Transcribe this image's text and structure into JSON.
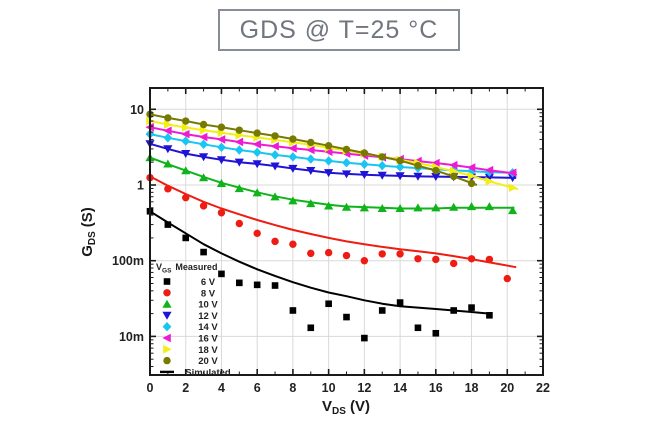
{
  "title": "GDS @ T=25 °C",
  "chart_data": {
    "type": "line",
    "title": "GDS @ T=25 °C",
    "xlabel": {
      "main": "V",
      "sub": "DS",
      "unit": "(V)"
    },
    "ylabel": {
      "main": "G",
      "sub": "DS",
      "unit": "(S)"
    },
    "x_axis": {
      "min": 0,
      "max": 22,
      "major_step": 2,
      "minor_step": 1,
      "tick_labels": [
        "0",
        "2",
        "4",
        "6",
        "8",
        "10",
        "12",
        "14",
        "16",
        "18",
        "20",
        "22"
      ]
    },
    "y_axis": {
      "scale": "log",
      "min": 0.003,
      "max": 19,
      "ticks": [
        {
          "label": "10",
          "value": 10
        },
        {
          "label": "1",
          "value": 1
        },
        {
          "label": "100m",
          "value": 0.1
        },
        {
          "label": "10m",
          "value": 0.01
        }
      ]
    },
    "grid": {
      "on": true,
      "color": "#d9d9d9"
    },
    "legend": {
      "position": "lower-left",
      "header": {
        "main": "V",
        "sub": "GS",
        "tail": "Measured"
      },
      "simulated_label": "Simulated"
    },
    "series": [
      {
        "name": "6 V",
        "vgs": 6,
        "color": "#000000",
        "marker": "square",
        "x": [
          0,
          1,
          2,
          3,
          4,
          5,
          6,
          7,
          8,
          9,
          10,
          11,
          12,
          13,
          14,
          15,
          16,
          17,
          18,
          19
        ],
        "measured": [
          0.45,
          0.3,
          0.2,
          0.13,
          0.067,
          0.051,
          0.048,
          0.047,
          0.022,
          0.013,
          0.027,
          0.018,
          0.0095,
          0.022,
          0.028,
          0.013,
          0.011,
          0.022,
          0.024,
          0.019
        ],
        "sim_x": [
          0,
          1,
          2,
          3,
          4,
          5,
          6,
          7,
          8,
          9,
          10,
          11,
          12,
          13,
          14,
          15,
          16,
          17,
          18,
          19
        ],
        "sim": [
          0.45,
          0.32,
          0.23,
          0.165,
          0.125,
          0.097,
          0.077,
          0.063,
          0.052,
          0.044,
          0.038,
          0.034,
          0.03,
          0.027,
          0.025,
          0.024,
          0.023,
          0.022,
          0.021,
          0.02
        ]
      },
      {
        "name": "8 V",
        "vgs": 8,
        "color": "#ee1c12",
        "marker": "circle",
        "x": [
          0,
          1,
          2,
          3,
          4,
          5,
          6,
          7,
          8,
          9,
          10,
          11,
          12,
          13,
          14,
          15,
          16,
          17,
          18,
          19,
          20
        ],
        "measured": [
          1.25,
          0.89,
          0.68,
          0.53,
          0.43,
          0.31,
          0.23,
          0.18,
          0.165,
          0.125,
          0.128,
          0.117,
          0.1,
          0.123,
          0.123,
          0.106,
          0.104,
          0.092,
          0.106,
          0.104,
          0.058
        ],
        "sim_x": [
          0,
          1,
          2,
          3,
          4,
          5,
          6,
          7,
          8,
          9,
          10,
          11,
          12,
          13,
          14,
          15,
          16,
          17,
          18,
          19,
          20.5
        ],
        "sim": [
          1.3,
          0.98,
          0.76,
          0.6,
          0.49,
          0.41,
          0.345,
          0.295,
          0.255,
          0.225,
          0.2,
          0.18,
          0.165,
          0.152,
          0.142,
          0.133,
          0.125,
          0.115,
          0.105,
          0.095,
          0.082
        ]
      },
      {
        "name": "10 V",
        "vgs": 10,
        "color": "#0eb419",
        "marker": "triangle-up",
        "x": [
          0,
          1,
          2,
          3,
          4,
          5,
          6,
          7,
          8,
          9,
          10,
          11,
          12,
          13,
          14,
          15,
          16,
          17,
          18,
          19,
          20.3
        ],
        "measured": [
          2.3,
          1.9,
          1.55,
          1.25,
          1.05,
          0.9,
          0.79,
          0.7,
          0.62,
          0.57,
          0.53,
          0.51,
          0.5,
          0.49,
          0.49,
          0.5,
          0.5,
          0.51,
          0.52,
          0.52,
          0.46
        ],
        "sim_x": [
          0,
          1,
          2,
          3,
          4,
          5,
          6,
          7,
          8,
          9,
          10,
          11,
          12,
          13,
          14,
          15,
          16,
          17,
          18,
          19,
          20.4
        ],
        "sim": [
          2.3,
          1.88,
          1.55,
          1.28,
          1.07,
          0.92,
          0.8,
          0.71,
          0.64,
          0.59,
          0.55,
          0.52,
          0.51,
          0.5,
          0.49,
          0.49,
          0.49,
          0.5,
          0.5,
          0.5,
          0.5
        ]
      },
      {
        "name": "12 V",
        "vgs": 12,
        "color": "#2013d6",
        "marker": "triangle-down",
        "x": [
          0,
          1,
          2,
          3,
          4,
          5,
          6,
          7,
          8,
          9,
          10,
          11,
          12,
          13,
          14,
          15,
          16,
          17,
          18,
          19,
          20.3
        ],
        "measured": [
          3.5,
          3.0,
          2.6,
          2.35,
          2.15,
          2.0,
          1.9,
          1.78,
          1.65,
          1.55,
          1.45,
          1.4,
          1.37,
          1.34,
          1.32,
          1.3,
          1.29,
          1.28,
          1.27,
          1.26,
          1.25
        ],
        "sim_x": [
          0,
          1,
          2,
          3,
          4,
          5,
          6,
          7,
          8,
          9,
          10,
          11,
          12,
          13,
          14,
          15,
          16,
          17,
          18,
          19,
          20.5
        ],
        "sim": [
          3.5,
          3.0,
          2.6,
          2.35,
          2.15,
          2.0,
          1.9,
          1.78,
          1.65,
          1.55,
          1.45,
          1.4,
          1.37,
          1.34,
          1.32,
          1.3,
          1.29,
          1.28,
          1.27,
          1.26,
          1.24
        ]
      },
      {
        "name": "14 V",
        "vgs": 14,
        "color": "#19c5f1",
        "marker": "diamond",
        "x": [
          0,
          1,
          2,
          3,
          4,
          5,
          6,
          7,
          8,
          9,
          10,
          11,
          12,
          13,
          14,
          15,
          16,
          17,
          18,
          19,
          20.3
        ],
        "measured": [
          4.7,
          4.2,
          3.8,
          3.45,
          3.15,
          2.9,
          2.7,
          2.5,
          2.35,
          2.2,
          2.08,
          1.97,
          1.88,
          1.8,
          1.73,
          1.67,
          1.61,
          1.56,
          1.52,
          1.48,
          1.45
        ],
        "sim_x": [
          0,
          1,
          2,
          3,
          4,
          5,
          6,
          7,
          8,
          9,
          10,
          11,
          12,
          13,
          14,
          15,
          16,
          17,
          18,
          19,
          20.5
        ],
        "sim": [
          4.7,
          4.2,
          3.8,
          3.45,
          3.15,
          2.9,
          2.7,
          2.5,
          2.35,
          2.2,
          2.08,
          1.97,
          1.88,
          1.8,
          1.73,
          1.67,
          1.61,
          1.56,
          1.52,
          1.48,
          1.44
        ]
      },
      {
        "name": "16 V",
        "vgs": 16,
        "color": "#ef1bd3",
        "marker": "triangle-left",
        "x": [
          0,
          1,
          2,
          3,
          4,
          5,
          6,
          7,
          8,
          9,
          10,
          11,
          12,
          13,
          14,
          15,
          16,
          17,
          18,
          19,
          20.3
        ],
        "measured": [
          5.8,
          5.2,
          4.7,
          4.3,
          4.0,
          3.7,
          3.45,
          3.25,
          3.05,
          2.9,
          2.75,
          2.6,
          2.45,
          2.32,
          2.2,
          2.07,
          1.95,
          1.83,
          1.7,
          1.57,
          1.45
        ],
        "sim_x": [
          0,
          1,
          2,
          3,
          4,
          5,
          6,
          7,
          8,
          9,
          10,
          11,
          12,
          13,
          14,
          15,
          16,
          17,
          18,
          19,
          20.5
        ],
        "sim": [
          5.8,
          5.2,
          4.7,
          4.3,
          4.0,
          3.7,
          3.45,
          3.25,
          3.05,
          2.9,
          2.75,
          2.6,
          2.45,
          2.32,
          2.2,
          2.07,
          1.95,
          1.83,
          1.7,
          1.57,
          1.41
        ]
      },
      {
        "name": "18 V",
        "vgs": 18,
        "color": "#f3ee16",
        "marker": "triangle-right",
        "x": [
          0,
          1,
          2,
          3,
          4,
          5,
          6,
          7,
          8,
          9,
          10,
          11,
          12,
          13,
          14,
          15,
          16,
          17,
          18,
          19,
          20.3
        ],
        "measured": [
          7.0,
          6.3,
          5.75,
          5.3,
          4.9,
          4.55,
          4.25,
          3.95,
          3.65,
          3.4,
          3.1,
          2.85,
          2.6,
          2.38,
          2.15,
          1.95,
          1.73,
          1.52,
          1.32,
          1.12,
          0.92
        ],
        "sim_x": [
          0,
          1,
          2,
          3,
          4,
          5,
          6,
          7,
          8,
          9,
          10,
          11,
          12,
          13,
          14,
          15,
          16,
          17,
          18,
          19,
          20.6
        ],
        "sim": [
          7.0,
          6.3,
          5.75,
          5.3,
          4.9,
          4.55,
          4.25,
          3.95,
          3.65,
          3.4,
          3.1,
          2.85,
          2.6,
          2.38,
          2.15,
          1.95,
          1.73,
          1.52,
          1.32,
          1.12,
          0.88
        ]
      },
      {
        "name": "20 V",
        "vgs": 20,
        "color": "#767a00",
        "marker": "circle",
        "x": [
          0,
          1,
          2,
          3,
          4,
          5,
          6,
          7,
          8,
          9,
          10,
          11,
          12,
          13,
          14,
          15,
          16,
          17,
          18
        ],
        "measured": [
          8.6,
          7.7,
          7.0,
          6.3,
          5.8,
          5.3,
          4.85,
          4.45,
          4.05,
          3.65,
          3.3,
          2.95,
          2.65,
          2.35,
          2.1,
          1.8,
          1.55,
          1.3,
          1.05
        ],
        "sim_x": [
          0,
          1,
          2,
          3,
          4,
          5,
          6,
          7,
          8,
          9,
          10,
          11,
          12,
          13,
          14,
          15,
          16,
          17,
          18.3
        ],
        "sim": [
          8.6,
          7.7,
          7.0,
          6.3,
          5.8,
          5.3,
          4.85,
          4.45,
          4.05,
          3.65,
          3.3,
          2.95,
          2.65,
          2.35,
          2.1,
          1.8,
          1.55,
          1.3,
          1.0
        ]
      }
    ]
  }
}
